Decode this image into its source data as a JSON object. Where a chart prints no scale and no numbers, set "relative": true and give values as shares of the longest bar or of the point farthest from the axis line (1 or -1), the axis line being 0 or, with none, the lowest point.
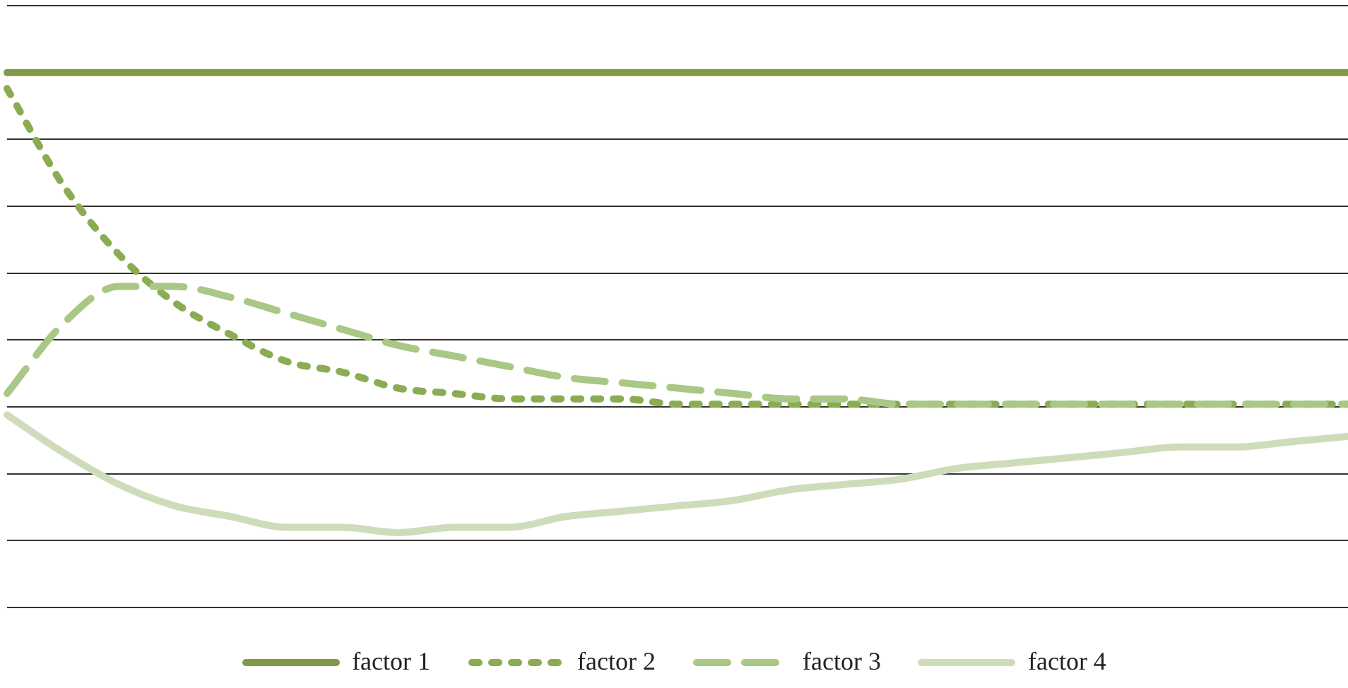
{
  "chart_data": {
    "type": "line",
    "relative": true,
    "grid": "y",
    "legend": "bottom",
    "marker": "none",
    "categories": [
      null,
      null,
      null,
      null,
      null,
      null,
      null,
      null,
      null,
      null,
      null,
      null,
      null,
      null,
      null,
      null,
      null,
      null,
      null,
      null,
      null,
      null,
      null,
      null,
      null
    ],
    "series": [
      {
        "name": "factor 1",
        "color": "#7f9a48",
        "line_style": "solid",
        "values": [
          1,
          1,
          1,
          1,
          1,
          1,
          1,
          1,
          1,
          1,
          1,
          1,
          1,
          1,
          1,
          1,
          1,
          1,
          1,
          1,
          1,
          1,
          1,
          1,
          1
        ]
      },
      {
        "name": "factor 2",
        "color": "#8aac52",
        "line_style": "dotted",
        "values": [
          0.97,
          0.79,
          0.66,
          0.57,
          0.51,
          0.46,
          0.44,
          0.41,
          0.4,
          0.39,
          0.39,
          0.39,
          0.38,
          0.38,
          0.38,
          0.38,
          0.38,
          0.38,
          0.38,
          0.38,
          0.38,
          0.38,
          0.38,
          0.38,
          0.38
        ]
      },
      {
        "name": "factor 3",
        "color": "#a9c785",
        "line_style": "dashed",
        "values": [
          0.4,
          0.53,
          0.6,
          0.6,
          0.58,
          0.55,
          0.52,
          0.49,
          0.47,
          0.45,
          0.43,
          0.42,
          0.41,
          0.4,
          0.39,
          0.39,
          0.38,
          0.38,
          0.38,
          0.38,
          0.38,
          0.38,
          0.38,
          0.38,
          0.38
        ]
      },
      {
        "name": "factor 4",
        "color": "#cfdcba",
        "line_style": "solid",
        "values": [
          0.36,
          0.29,
          0.23,
          0.19,
          0.17,
          0.15,
          0.15,
          0.14,
          0.15,
          0.15,
          0.17,
          0.18,
          0.19,
          0.2,
          0.22,
          0.23,
          0.24,
          0.26,
          0.27,
          0.28,
          0.29,
          0.3,
          0.3,
          0.31,
          0.32
        ]
      }
    ]
  }
}
